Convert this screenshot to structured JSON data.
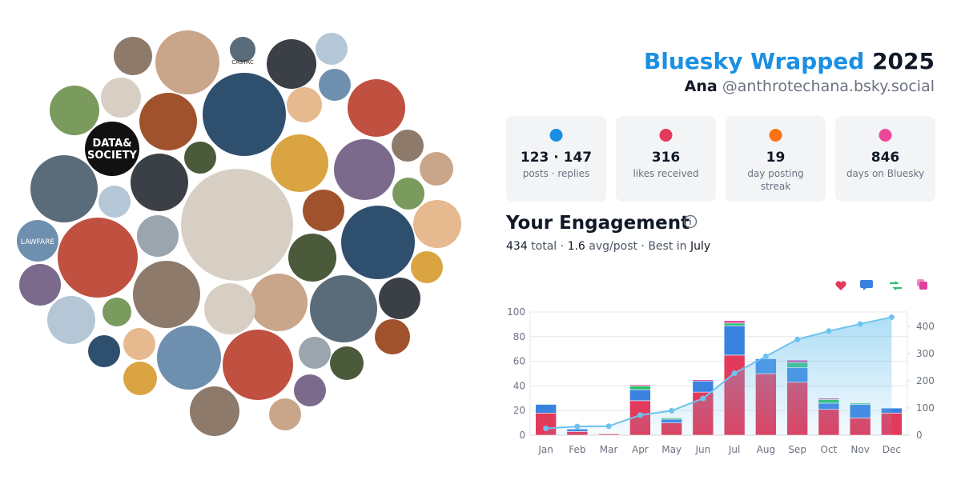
{
  "header": {
    "title": "Bluesky Wrapped",
    "year": "2025",
    "name": "Ana",
    "handle": "@anthrotechana.bsky.social"
  },
  "avatars": {
    "texts": [
      "DATA&",
      "SOCIETY",
      "LAWFARE",
      "CASTAC"
    ]
  },
  "stats": [
    {
      "value": "123 · 147",
      "label": "posts · replies"
    },
    {
      "value": "316",
      "label": "likes received"
    },
    {
      "value": "19",
      "label": "day posting",
      "label2": "streak"
    },
    {
      "value": "846",
      "label": "days on Bluesky"
    }
  ],
  "engagement": {
    "title": "Your Engagement",
    "summary": [
      "434",
      " total · ",
      "1.6",
      " avg/post · Best in ",
      "July"
    ]
  },
  "chart_data": {
    "type": "bar",
    "stacked": true,
    "categories": [
      "Jan",
      "Feb",
      "Mar",
      "Apr",
      "May",
      "Jun",
      "Jul",
      "Aug",
      "Sep",
      "Oct",
      "Nov",
      "Dec"
    ],
    "series": [
      {
        "color": "#e23a5a",
        "values": [
          18,
          3,
          1,
          28,
          10,
          35,
          65,
          50,
          43,
          21,
          14,
          18
        ]
      },
      {
        "color": "#3a82e0",
        "values": [
          7,
          2,
          0,
          9,
          3,
          9,
          24,
          12,
          12,
          5,
          11,
          4
        ]
      },
      {
        "color": "#2bbf6a",
        "values": [
          0,
          0,
          0,
          3,
          1,
          0,
          2,
          0,
          4,
          3,
          1,
          0
        ]
      },
      {
        "color": "#e0409e",
        "values": [
          0,
          0,
          0,
          1,
          0,
          1,
          2,
          0,
          2,
          1,
          0,
          0
        ]
      },
      {
        "type": "line",
        "axis": "y2",
        "color": "#6ec3ee",
        "values": [
          25,
          32,
          33,
          74,
          90,
          135,
          228,
          290,
          352,
          383,
          409,
          434
        ]
      }
    ],
    "ylim": [
      0,
      100
    ],
    "yticks": [
      0,
      20,
      40,
      60,
      80,
      100
    ],
    "y2lim": [
      0,
      453
    ],
    "y2ticks": [
      0,
      100,
      200,
      300,
      400
    ],
    "grid": true
  }
}
